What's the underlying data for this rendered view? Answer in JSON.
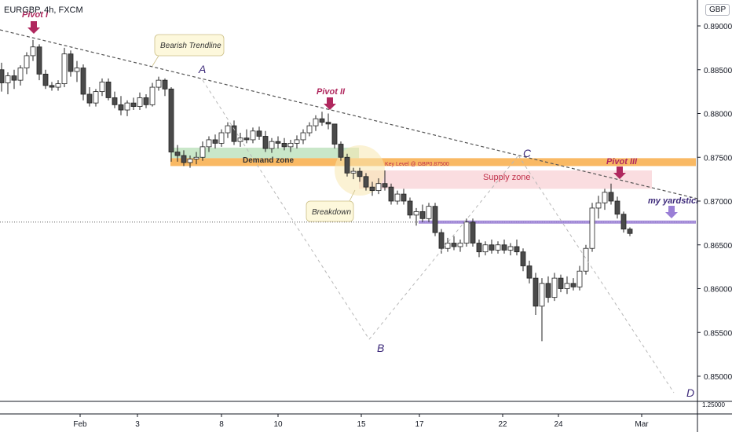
{
  "header": {
    "symbol": "EURGBP, 4h, FXCM",
    "currency": "GBP"
  },
  "colors": {
    "up": "#ffffff",
    "down": "#4a4a4a",
    "pivot": "#b0285e",
    "trend": "#555555",
    "supply": "#f7c6cc",
    "demand": "#bfe3bf",
    "key": "#f7a83d",
    "yardstick": "#9a7fd6",
    "wave": "#3d2a7a"
  },
  "chart_data": {
    "type": "candlestick",
    "title": "EURGBP, 4h, FXCM",
    "y_axis_ticks": [
      "0.89000",
      "0.88500",
      "0.88000",
      "0.87500",
      "0.87000",
      "0.86500",
      "0.86000",
      "0.85500",
      "0.85000"
    ],
    "y_axis_values": [
      0.89,
      0.885,
      0.88,
      0.875,
      0.87,
      0.865,
      0.86,
      0.855,
      0.85
    ],
    "bottom_pane_tick": "1.25000",
    "x_axis_ticks": [
      "Feb",
      "3",
      "8",
      "10",
      "15",
      "17",
      "22",
      "24",
      "Mar"
    ],
    "ylim": [
      0.8485,
      0.8908
    ],
    "candles_ohlc": [
      [
        0.885,
        0.8858,
        0.8825,
        0.8835
      ],
      [
        0.8835,
        0.8847,
        0.8822,
        0.8843
      ],
      [
        0.8843,
        0.885,
        0.8828,
        0.8838
      ],
      [
        0.8838,
        0.8855,
        0.8832,
        0.8852
      ],
      [
        0.8852,
        0.887,
        0.8845,
        0.8866
      ],
      [
        0.8866,
        0.8884,
        0.886,
        0.8876
      ],
      [
        0.8876,
        0.8879,
        0.8838,
        0.8845
      ],
      [
        0.8845,
        0.885,
        0.8828,
        0.8832
      ],
      [
        0.8832,
        0.8836,
        0.8826,
        0.883
      ],
      [
        0.883,
        0.8838,
        0.8826,
        0.8834
      ],
      [
        0.8834,
        0.8875,
        0.883,
        0.8868
      ],
      [
        0.8868,
        0.8872,
        0.8842,
        0.8848
      ],
      [
        0.8848,
        0.886,
        0.8836,
        0.8852
      ],
      [
        0.8852,
        0.8856,
        0.8815,
        0.8822
      ],
      [
        0.8822,
        0.883,
        0.8808,
        0.8812
      ],
      [
        0.8812,
        0.8828,
        0.8808,
        0.8825
      ],
      [
        0.8825,
        0.884,
        0.882,
        0.8836
      ],
      [
        0.8836,
        0.884,
        0.8815,
        0.8818
      ],
      [
        0.8818,
        0.8825,
        0.8806,
        0.881
      ],
      [
        0.881,
        0.882,
        0.8798,
        0.8804
      ],
      [
        0.8804,
        0.8815,
        0.8797,
        0.8812
      ],
      [
        0.8812,
        0.8818,
        0.8804,
        0.8808
      ],
      [
        0.8808,
        0.8824,
        0.8804,
        0.8818
      ],
      [
        0.8818,
        0.8822,
        0.8806,
        0.881
      ],
      [
        0.881,
        0.8835,
        0.8808,
        0.883
      ],
      [
        0.883,
        0.8842,
        0.8826,
        0.8838
      ],
      [
        0.8838,
        0.884,
        0.882,
        0.8828
      ],
      [
        0.8828,
        0.883,
        0.8745,
        0.8756
      ],
      [
        0.8756,
        0.8764,
        0.8745,
        0.8752
      ],
      [
        0.8752,
        0.8758,
        0.874,
        0.8744
      ],
      [
        0.8744,
        0.8752,
        0.8738,
        0.8748
      ],
      [
        0.8748,
        0.8756,
        0.8742,
        0.875
      ],
      [
        0.875,
        0.8768,
        0.8746,
        0.8762
      ],
      [
        0.8762,
        0.8774,
        0.8756,
        0.877
      ],
      [
        0.877,
        0.8776,
        0.876,
        0.8766
      ],
      [
        0.8766,
        0.8782,
        0.8762,
        0.8778
      ],
      [
        0.8778,
        0.879,
        0.8772,
        0.8786
      ],
      [
        0.8786,
        0.8792,
        0.8764,
        0.8768
      ],
      [
        0.8768,
        0.8778,
        0.8762,
        0.8772
      ],
      [
        0.8772,
        0.8782,
        0.8766,
        0.877
      ],
      [
        0.877,
        0.8784,
        0.8766,
        0.878
      ],
      [
        0.878,
        0.8785,
        0.877,
        0.8774
      ],
      [
        0.8774,
        0.878,
        0.8756,
        0.876
      ],
      [
        0.876,
        0.8772,
        0.8755,
        0.8768
      ],
      [
        0.8768,
        0.8774,
        0.876,
        0.8766
      ],
      [
        0.8766,
        0.8772,
        0.8758,
        0.8762
      ],
      [
        0.8762,
        0.877,
        0.8756,
        0.8766
      ],
      [
        0.8766,
        0.8775,
        0.876,
        0.877
      ],
      [
        0.877,
        0.8782,
        0.8765,
        0.8778
      ],
      [
        0.8778,
        0.879,
        0.8774,
        0.8786
      ],
      [
        0.8786,
        0.8798,
        0.878,
        0.8794
      ],
      [
        0.8794,
        0.8802,
        0.8786,
        0.879
      ],
      [
        0.879,
        0.88,
        0.8782,
        0.8788
      ],
      [
        0.8788,
        0.8786,
        0.876,
        0.8765
      ],
      [
        0.8765,
        0.8768,
        0.8746,
        0.875
      ],
      [
        0.875,
        0.8754,
        0.8728,
        0.8732
      ],
      [
        0.8732,
        0.8738,
        0.8725,
        0.8734
      ],
      [
        0.8734,
        0.8738,
        0.8722,
        0.8728
      ],
      [
        0.8728,
        0.8732,
        0.8712,
        0.8716
      ],
      [
        0.8716,
        0.8722,
        0.8706,
        0.8712
      ],
      [
        0.8712,
        0.8726,
        0.8708,
        0.872
      ],
      [
        0.872,
        0.8735,
        0.8712,
        0.8716
      ],
      [
        0.8716,
        0.872,
        0.8696,
        0.87
      ],
      [
        0.87,
        0.8712,
        0.8696,
        0.8708
      ],
      [
        0.8708,
        0.8714,
        0.8696,
        0.87
      ],
      [
        0.87,
        0.8704,
        0.868,
        0.8684
      ],
      [
        0.8684,
        0.8692,
        0.8672,
        0.8688
      ],
      [
        0.8688,
        0.8696,
        0.8676,
        0.868
      ],
      [
        0.868,
        0.8698,
        0.8676,
        0.8694
      ],
      [
        0.8694,
        0.8698,
        0.866,
        0.8664
      ],
      [
        0.8664,
        0.8668,
        0.864,
        0.8646
      ],
      [
        0.8646,
        0.8658,
        0.8642,
        0.8652
      ],
      [
        0.8652,
        0.866,
        0.8644,
        0.8648
      ],
      [
        0.8648,
        0.8656,
        0.8642,
        0.8652
      ],
      [
        0.8652,
        0.868,
        0.8648,
        0.8676
      ],
      [
        0.8676,
        0.868,
        0.8648,
        0.8652
      ],
      [
        0.8652,
        0.8656,
        0.8636,
        0.8642
      ],
      [
        0.8642,
        0.8654,
        0.8638,
        0.865
      ],
      [
        0.865,
        0.8656,
        0.864,
        0.8644
      ],
      [
        0.8644,
        0.8654,
        0.864,
        0.865
      ],
      [
        0.865,
        0.8656,
        0.864,
        0.8644
      ],
      [
        0.8644,
        0.8652,
        0.8638,
        0.8648
      ],
      [
        0.8648,
        0.8656,
        0.8638,
        0.8642
      ],
      [
        0.8642,
        0.8646,
        0.862,
        0.8626
      ],
      [
        0.8626,
        0.8632,
        0.8606,
        0.8612
      ],
      [
        0.8612,
        0.8618,
        0.857,
        0.858
      ],
      [
        0.858,
        0.8612,
        0.854,
        0.8606
      ],
      [
        0.8606,
        0.8614,
        0.8584,
        0.859
      ],
      [
        0.859,
        0.8618,
        0.8586,
        0.8612
      ],
      [
        0.8612,
        0.8616,
        0.8596,
        0.86
      ],
      [
        0.86,
        0.8614,
        0.8594,
        0.8606
      ],
      [
        0.8606,
        0.8612,
        0.8598,
        0.8602
      ],
      [
        0.8602,
        0.8626,
        0.8598,
        0.862
      ],
      [
        0.862,
        0.865,
        0.8616,
        0.8646
      ],
      [
        0.8646,
        0.8698,
        0.8642,
        0.8692
      ],
      [
        0.8692,
        0.8706,
        0.868,
        0.8698
      ],
      [
        0.8698,
        0.8714,
        0.869,
        0.871
      ],
      [
        0.871,
        0.872,
        0.8696,
        0.87
      ],
      [
        0.87,
        0.8705,
        0.868,
        0.8685
      ],
      [
        0.8685,
        0.8688,
        0.8664,
        0.8668
      ],
      [
        0.8668,
        0.867,
        0.866,
        0.8663
      ]
    ],
    "zones": [
      {
        "label": "Demand zone",
        "from": 0.8749,
        "to": 0.8761
      },
      {
        "label": "Supply zone",
        "from": 0.8714,
        "to": 0.8735
      },
      {
        "label": "Key Level @ GBP0.87500",
        "from": 0.874,
        "to": 0.8749
      },
      {
        "label": "my yardstick",
        "value": 0.8676
      }
    ],
    "annotations": {
      "pivots": [
        "Pivot I",
        "Pivot II",
        "Pivot III"
      ],
      "waves": [
        "A",
        "B",
        "C",
        "D"
      ],
      "callouts": [
        "Bearish Trendline",
        "Breakdown"
      ],
      "hline": 0.8676
    }
  }
}
